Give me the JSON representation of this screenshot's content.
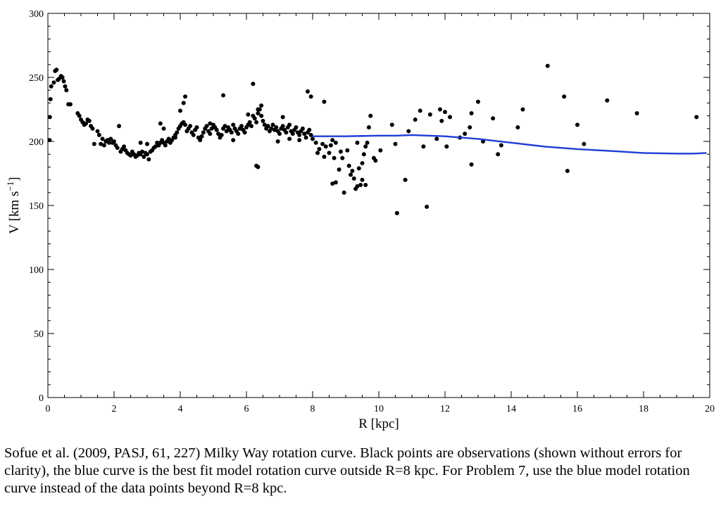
{
  "chart_data": {
    "type": "scatter",
    "title": "",
    "xlabel": "R [kpc]",
    "ylabel_parts": [
      "V [km s",
      "−1",
      "]"
    ],
    "xlim": [
      0,
      20
    ],
    "ylim": [
      0,
      300
    ],
    "x_ticks": [
      0,
      2,
      4,
      6,
      8,
      10,
      12,
      14,
      16,
      18,
      20
    ],
    "y_ticks": [
      0,
      50,
      100,
      150,
      200,
      250,
      300
    ],
    "grid": false,
    "colors": {
      "points": "#000000",
      "model_curve": "#1f3cd6"
    },
    "series": [
      {
        "kind": "points",
        "points": [
          [
            0.05,
            201
          ],
          [
            0.06,
            219
          ],
          [
            0.08,
            233
          ],
          [
            0.1,
            243
          ],
          [
            0.18,
            246
          ],
          [
            0.22,
            255
          ],
          [
            0.26,
            256
          ],
          [
            0.3,
            248
          ],
          [
            0.34,
            249
          ],
          [
            0.4,
            251
          ],
          [
            0.44,
            250
          ],
          [
            0.48,
            247
          ],
          [
            0.52,
            243
          ],
          [
            0.56,
            240
          ],
          [
            0.62,
            229
          ],
          [
            0.68,
            229
          ],
          [
            0.9,
            222
          ],
          [
            0.95,
            220
          ],
          [
            1.0,
            217
          ],
          [
            1.05,
            215
          ],
          [
            1.1,
            213
          ],
          [
            1.15,
            214
          ],
          [
            1.2,
            217
          ],
          [
            1.25,
            216
          ],
          [
            1.3,
            212
          ],
          [
            1.35,
            210
          ],
          [
            1.4,
            198
          ],
          [
            1.5,
            208
          ],
          [
            1.55,
            205
          ],
          [
            1.6,
            198
          ],
          [
            1.65,
            202
          ],
          [
            1.7,
            197
          ],
          [
            1.75,
            200
          ],
          [
            1.8,
            201
          ],
          [
            1.85,
            199
          ],
          [
            1.9,
            202
          ],
          [
            1.95,
            199
          ],
          [
            2.0,
            200
          ],
          [
            2.05,
            197
          ],
          [
            2.1,
            195
          ],
          [
            2.15,
            212
          ],
          [
            2.2,
            192
          ],
          [
            2.25,
            194
          ],
          [
            2.3,
            196
          ],
          [
            2.35,
            193
          ],
          [
            2.4,
            191
          ],
          [
            2.45,
            190
          ],
          [
            2.5,
            189
          ],
          [
            2.55,
            192
          ],
          [
            2.6,
            190
          ],
          [
            2.65,
            188
          ],
          [
            2.7,
            189
          ],
          [
            2.75,
            191
          ],
          [
            2.8,
            190
          ],
          [
            2.85,
            192
          ],
          [
            2.9,
            188
          ],
          [
            2.95,
            191
          ],
          [
            3.0,
            190
          ],
          [
            3.05,
            186
          ],
          [
            3.1,
            192
          ],
          [
            3.15,
            193
          ],
          [
            3.2,
            195
          ],
          [
            3.25,
            196
          ],
          [
            3.3,
            199
          ],
          [
            3.35,
            197
          ],
          [
            3.4,
            199
          ],
          [
            3.45,
            201
          ],
          [
            3.5,
            199
          ],
          [
            3.55,
            197
          ],
          [
            3.6,
            200
          ],
          [
            3.65,
            202
          ],
          [
            3.7,
            199
          ],
          [
            3.75,
            201
          ],
          [
            3.8,
            203
          ],
          [
            3.85,
            205
          ],
          [
            3.9,
            207
          ],
          [
            3.95,
            210
          ],
          [
            4.0,
            212
          ],
          [
            4.05,
            214
          ],
          [
            4.1,
            215
          ],
          [
            4.15,
            213
          ],
          [
            4.2,
            208
          ],
          [
            4.25,
            210
          ],
          [
            4.3,
            212
          ],
          [
            4.35,
            207
          ],
          [
            4.4,
            205
          ],
          [
            4.45,
            209
          ],
          [
            4.5,
            211
          ],
          [
            4.55,
            203
          ],
          [
            4.6,
            201
          ],
          [
            4.65,
            204
          ],
          [
            4.7,
            207
          ],
          [
            4.75,
            210
          ],
          [
            4.8,
            212
          ],
          [
            4.85,
            208
          ],
          [
            4.9,
            206
          ],
          [
            4.95,
            210
          ],
          [
            5.0,
            213
          ],
          [
            5.05,
            211
          ],
          [
            5.1,
            209
          ],
          [
            5.15,
            206
          ],
          [
            5.2,
            203
          ],
          [
            5.25,
            205
          ],
          [
            5.3,
            210
          ],
          [
            5.35,
            212
          ],
          [
            5.4,
            208
          ],
          [
            5.45,
            211
          ],
          [
            5.5,
            209
          ],
          [
            5.55,
            207
          ],
          [
            5.6,
            213
          ],
          [
            5.65,
            210
          ],
          [
            5.7,
            208
          ],
          [
            5.75,
            206
          ],
          [
            5.8,
            210
          ],
          [
            5.85,
            212
          ],
          [
            5.9,
            209
          ],
          [
            5.95,
            207
          ],
          [
            6.0,
            211
          ],
          [
            6.05,
            213
          ],
          [
            6.1,
            215
          ],
          [
            6.15,
            212
          ],
          [
            6.2,
            220
          ],
          [
            6.25,
            218
          ],
          [
            6.3,
            215
          ],
          [
            6.35,
            222
          ],
          [
            6.4,
            225
          ],
          [
            6.45,
            220
          ],
          [
            6.5,
            216
          ],
          [
            6.55,
            213
          ],
          [
            6.6,
            210
          ],
          [
            6.65,
            212
          ],
          [
            6.7,
            208
          ],
          [
            6.75,
            210
          ],
          [
            6.8,
            213
          ],
          [
            6.85,
            209
          ],
          [
            6.9,
            211
          ],
          [
            6.95,
            208
          ],
          [
            7.0,
            206
          ],
          [
            7.05,
            210
          ],
          [
            7.1,
            212
          ],
          [
            7.15,
            209
          ],
          [
            7.2,
            207
          ],
          [
            7.25,
            211
          ],
          [
            7.3,
            213
          ],
          [
            7.35,
            208
          ],
          [
            7.4,
            206
          ],
          [
            7.45,
            209
          ],
          [
            7.5,
            211
          ],
          [
            7.55,
            207
          ],
          [
            7.6,
            205
          ],
          [
            7.65,
            208
          ],
          [
            7.7,
            210
          ],
          [
            7.75,
            206
          ],
          [
            7.8,
            203
          ],
          [
            7.85,
            207
          ],
          [
            7.9,
            209
          ],
          [
            7.95,
            205
          ],
          [
            8.0,
            202
          ],
          [
            2.8,
            199
          ],
          [
            3.0,
            198
          ],
          [
            3.4,
            214
          ],
          [
            3.5,
            210
          ],
          [
            4.0,
            224
          ],
          [
            4.1,
            230
          ],
          [
            4.15,
            235
          ],
          [
            4.9,
            214
          ],
          [
            5.3,
            236
          ],
          [
            6.2,
            245
          ],
          [
            6.35,
            225
          ],
          [
            6.45,
            228
          ],
          [
            6.3,
            181
          ],
          [
            6.35,
            180
          ],
          [
            6.95,
            200
          ],
          [
            7.3,
            202
          ],
          [
            7.6,
            201
          ],
          [
            7.1,
            219
          ],
          [
            6.05,
            221
          ],
          [
            4.6,
            202
          ],
          [
            5.6,
            201
          ],
          [
            3.85,
            203
          ],
          [
            7.85,
            239
          ],
          [
            7.95,
            235
          ],
          [
            8.1,
            199
          ],
          [
            8.15,
            191
          ],
          [
            8.2,
            194
          ],
          [
            8.3,
            198
          ],
          [
            8.35,
            188
          ],
          [
            8.4,
            196
          ],
          [
            8.5,
            191
          ],
          [
            8.55,
            197
          ],
          [
            8.6,
            201
          ],
          [
            8.65,
            187
          ],
          [
            8.7,
            199
          ],
          [
            8.8,
            178
          ],
          [
            8.85,
            192
          ],
          [
            8.9,
            187
          ],
          [
            8.95,
            160
          ],
          [
            9.05,
            193
          ],
          [
            9.1,
            181
          ],
          [
            9.15,
            174
          ],
          [
            9.2,
            177
          ],
          [
            9.25,
            171
          ],
          [
            9.3,
            163
          ],
          [
            9.35,
            165
          ],
          [
            9.4,
            179
          ],
          [
            9.45,
            166
          ],
          [
            9.5,
            183
          ],
          [
            9.55,
            190
          ],
          [
            9.6,
            196
          ],
          [
            9.65,
            199
          ],
          [
            9.7,
            211
          ],
          [
            9.85,
            187
          ],
          [
            9.9,
            185
          ],
          [
            10.05,
            193
          ],
          [
            8.35,
            231
          ],
          [
            8.6,
            167
          ],
          [
            8.7,
            168
          ],
          [
            9.35,
            199
          ],
          [
            9.6,
            166
          ],
          [
            9.5,
            170
          ],
          [
            9.75,
            220
          ],
          [
            10.4,
            213
          ],
          [
            10.5,
            198
          ],
          [
            10.55,
            144
          ],
          [
            10.8,
            170
          ],
          [
            10.9,
            208
          ],
          [
            11.1,
            217
          ],
          [
            11.25,
            224
          ],
          [
            11.35,
            196
          ],
          [
            11.45,
            149
          ],
          [
            11.55,
            221
          ],
          [
            11.75,
            202
          ],
          [
            11.85,
            225
          ],
          [
            11.9,
            216
          ],
          [
            12.0,
            223
          ],
          [
            12.05,
            196
          ],
          [
            12.15,
            219
          ],
          [
            12.45,
            203
          ],
          [
            12.6,
            206
          ],
          [
            12.75,
            211
          ],
          [
            12.8,
            222
          ],
          [
            12.8,
            182
          ],
          [
            13.0,
            231
          ],
          [
            13.15,
            200
          ],
          [
            13.45,
            218
          ],
          [
            13.6,
            190
          ],
          [
            13.7,
            197
          ],
          [
            14.2,
            211
          ],
          [
            14.35,
            225
          ],
          [
            15.1,
            259
          ],
          [
            15.6,
            235
          ],
          [
            15.7,
            177
          ],
          [
            16.0,
            213
          ],
          [
            16.2,
            198
          ],
          [
            16.9,
            232
          ],
          [
            17.8,
            222
          ],
          [
            19.6,
            219
          ]
        ]
      },
      {
        "kind": "curve",
        "points": [
          [
            8.0,
            204
          ],
          [
            9.0,
            204
          ],
          [
            10.0,
            204.5
          ],
          [
            10.5,
            204.5
          ],
          [
            11.0,
            205
          ],
          [
            12.0,
            204
          ],
          [
            13.0,
            202
          ],
          [
            14.0,
            199
          ],
          [
            15.0,
            196
          ],
          [
            16.0,
            194
          ],
          [
            17.0,
            192.5
          ],
          [
            18.0,
            191
          ],
          [
            19.0,
            190.5
          ],
          [
            19.5,
            190.5
          ],
          [
            19.9,
            191
          ]
        ]
      }
    ]
  },
  "caption": "Sofue et al. (2009, PASJ, 61, 227) Milky Way rotation curve.  Black points are observations (shown without errors for clarity), the blue curve is the best fit model rotation curve outside R=8 kpc.  For Problem 7, use the blue model rotation curve instead of the data points beyond R=8 kpc."
}
